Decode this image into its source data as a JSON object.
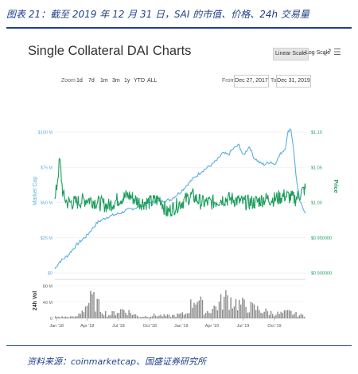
{
  "caption": "图表 21：截至 2019 年 12 月 31 日，SAI 的市值、价格、24h 交易量",
  "source": "资料来源：coinmarketcap、国盛证券研究所",
  "toolbar": {
    "linear_scale": "Linear Scale",
    "log_scale": "Log Scale",
    "fullscreen_icon": "expand-icon",
    "menu_icon": "hamburger-icon"
  },
  "zoom": {
    "label": "Zoom",
    "options": [
      "1d",
      "7d",
      "1m",
      "3m",
      "1y",
      "YTD",
      "ALL"
    ]
  },
  "range": {
    "from_label": "From",
    "from_value": "Dec 27, 2017",
    "to_label": "To",
    "to_value": "Dec 31, 2019"
  },
  "colors": {
    "market_cap": "#5aaee3",
    "price": "#1e9e5e",
    "volume": "#8a8a8a",
    "caption": "#1f3f8a"
  },
  "chart_data": {
    "type": "line",
    "title": "Single Collateral DAI Charts",
    "x_ticks": [
      "Jan '18",
      "Apr '18",
      "Jul '18",
      "Oct '18",
      "Jan '19",
      "Apr '19",
      "Jul '19",
      "Oct '19"
    ],
    "left_axis": {
      "label": "Market Cap",
      "ticks": [
        "$0",
        "$25 M",
        "$50 M",
        "$75 M",
        "$100 M"
      ],
      "range": [
        0,
        100
      ]
    },
    "right_axis": {
      "label": "Price",
      "ticks": [
        "$0.900000",
        "$0.950000",
        "$1.00",
        "$1.05",
        "$1.10"
      ],
      "range": [
        0.9,
        1.1
      ]
    },
    "volume_axis": {
      "label": "24h Vol",
      "ticks": [
        "0",
        "40 M",
        "80 M"
      ]
    },
    "series": [
      {
        "name": "Market Cap",
        "unit": "M USD",
        "x": [
          "2017-12-27",
          "2018-01-10",
          "2018-02-01",
          "2018-03-01",
          "2018-04-01",
          "2018-05-01",
          "2018-06-01",
          "2018-07-01",
          "2018-08-01",
          "2018-09-01",
          "2018-10-01",
          "2018-11-01",
          "2018-12-01",
          "2019-01-01",
          "2019-02-01",
          "2019-03-01",
          "2019-04-01",
          "2019-04-20",
          "2019-05-01",
          "2019-05-20",
          "2019-06-01",
          "2019-06-20",
          "2019-07-01",
          "2019-07-20",
          "2019-08-01",
          "2019-08-20",
          "2019-09-01",
          "2019-09-20",
          "2019-10-01",
          "2019-10-20",
          "2019-11-01",
          "2019-11-10",
          "2019-11-18",
          "2019-11-25",
          "2019-12-05",
          "2019-12-15",
          "2019-12-31"
        ],
        "values": [
          3,
          8,
          12,
          20,
          27,
          36,
          40,
          42,
          45,
          47,
          50,
          51,
          52,
          58,
          66,
          72,
          77,
          81,
          85,
          84,
          88,
          91,
          83,
          90,
          82,
          78,
          77,
          79,
          77,
          85,
          88,
          100,
          103,
          90,
          65,
          50,
          43
        ]
      },
      {
        "name": "Price",
        "unit": "USD",
        "x": [
          "2017-12-27",
          "2018-01-10",
          "2018-01-20",
          "2018-02-01",
          "2018-03-01",
          "2018-04-01",
          "2018-05-01",
          "2018-06-01",
          "2018-07-01",
          "2018-08-01",
          "2018-09-01",
          "2018-10-01",
          "2018-11-01",
          "2018-11-20",
          "2018-12-01",
          "2019-01-01",
          "2019-02-01",
          "2019-03-01",
          "2019-04-01",
          "2019-05-01",
          "2019-06-01",
          "2019-07-01",
          "2019-08-01",
          "2019-09-01",
          "2019-10-01",
          "2019-11-01",
          "2019-12-01",
          "2019-12-31"
        ],
        "values": [
          1.0,
          1.06,
          1.01,
          1.0,
          1.0,
          1.005,
          1.0,
          0.995,
          1.005,
          1.01,
          1.0,
          1.0,
          1.005,
          0.985,
          0.99,
          1.0,
          1.01,
          1.0,
          1.0,
          1.005,
          1.005,
          1.0,
          1.0,
          1.005,
          1.005,
          1.01,
          1.005,
          1.02
        ]
      },
      {
        "name": "24h Vol",
        "unit": "M USD",
        "x": [
          "2018-01-15",
          "2018-03-01",
          "2018-04-15",
          "2018-06-01",
          "2018-07-15",
          "2018-09-01",
          "2018-10-15",
          "2018-12-01",
          "2019-01-15",
          "2019-02-15",
          "2019-03-15",
          "2019-04-15",
          "2019-05-15",
          "2019-06-15",
          "2019-07-15",
          "2019-08-15",
          "2019-09-15",
          "2019-10-15",
          "2019-11-15",
          "2019-12-15"
        ],
        "values": [
          5,
          5,
          65,
          10,
          30,
          5,
          10,
          8,
          15,
          75,
          20,
          40,
          70,
          50,
          40,
          30,
          20,
          15,
          20,
          10
        ]
      }
    ]
  }
}
